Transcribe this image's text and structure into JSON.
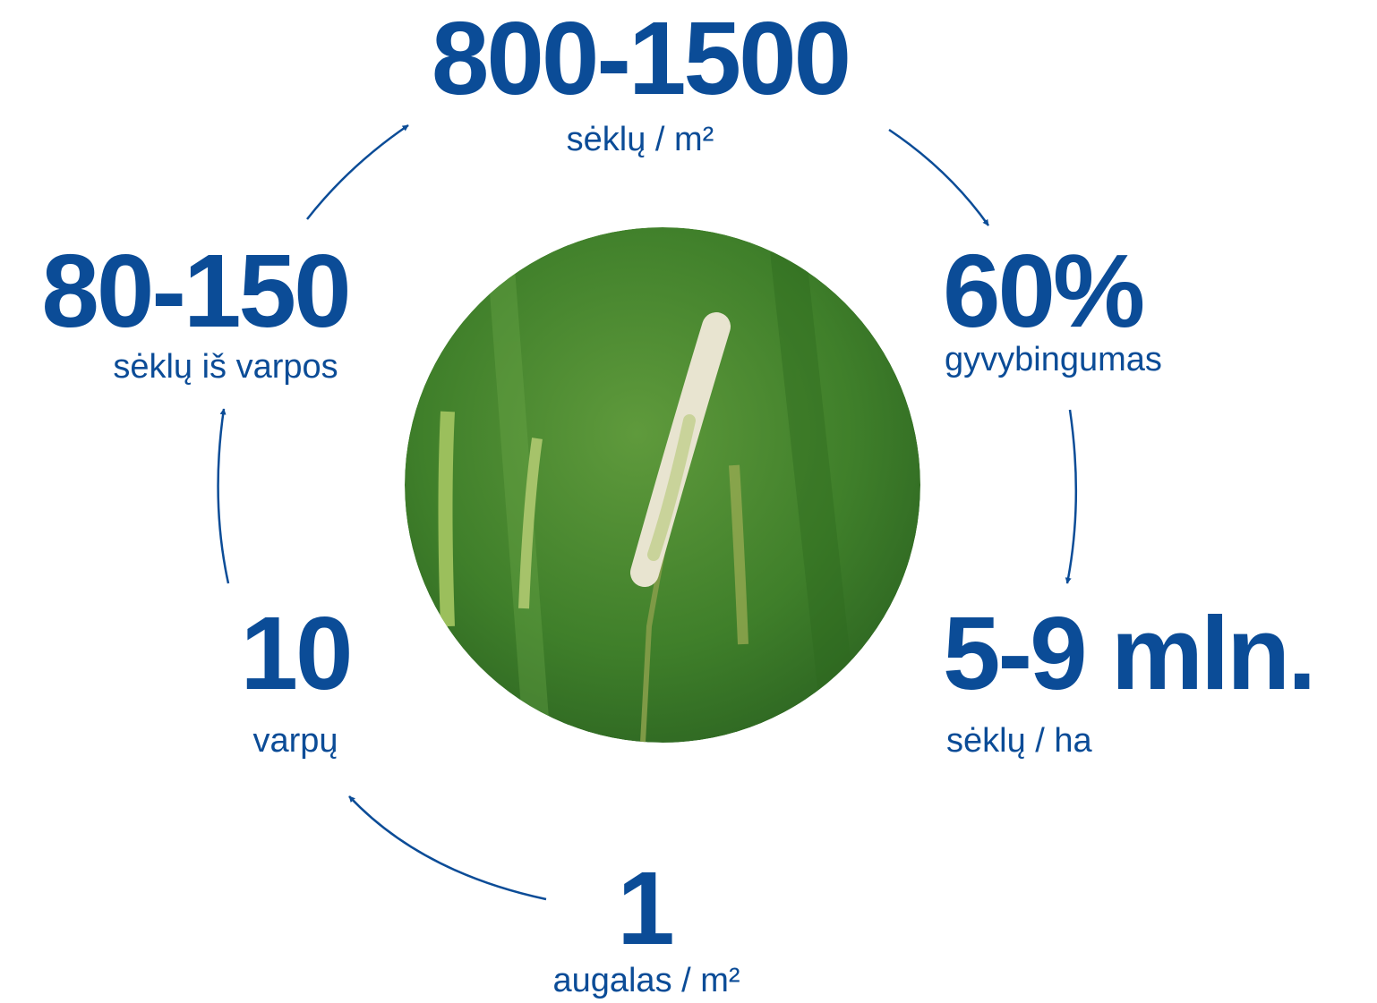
{
  "nodes": [
    {
      "value": "800-1500",
      "label": "sėklų / m²"
    },
    {
      "value": "60%",
      "label": "gyvybingumas"
    },
    {
      "value": "5-9 mln.",
      "label": "sėklų / ha"
    },
    {
      "value": "1",
      "label": "augalas / m²"
    },
    {
      "value": "10",
      "label": "varpų"
    },
    {
      "value": "80-150",
      "label": "sėklų iš varpos"
    }
  ]
}
